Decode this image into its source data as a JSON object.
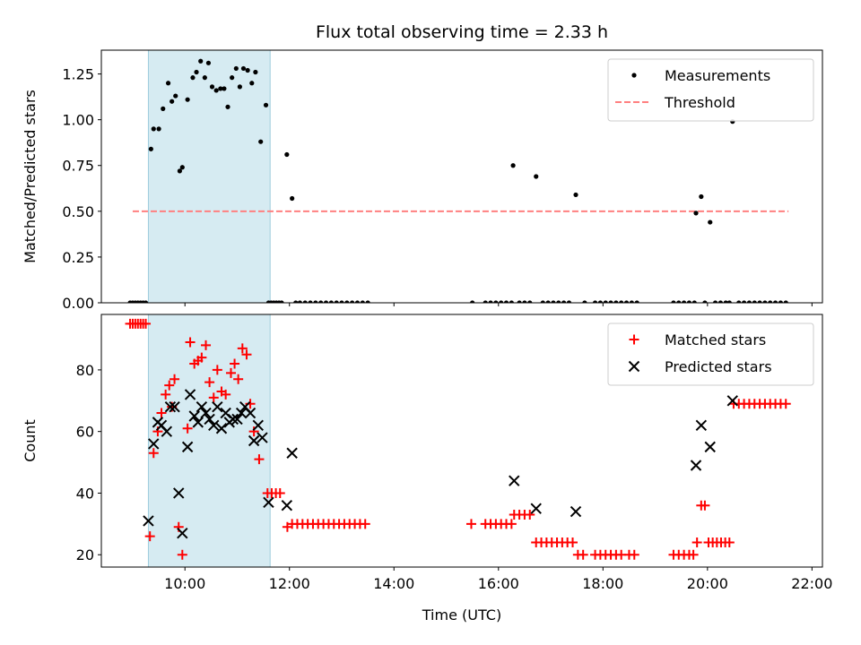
{
  "chart_data": [
    {
      "type": "scatter",
      "title": "Flux total observing time = 2.33 h",
      "xlabel": "",
      "ylabel": "Matched/Predicted stars",
      "xlim": [
        8.4,
        22.2
      ],
      "ylim": [
        0,
        1.38
      ],
      "yticks": [
        "0.00",
        "0.25",
        "0.50",
        "0.75",
        "1.00",
        "1.25"
      ],
      "ytick_values": [
        0,
        0.25,
        0.5,
        0.75,
        1.0,
        1.25
      ],
      "shaded_span": [
        9.3,
        11.63
      ],
      "legend": {
        "position": "upper right",
        "entries": [
          "Measurements",
          "Threshold"
        ]
      },
      "threshold": {
        "name": "Threshold",
        "value": 0.5,
        "x_range": [
          9.0,
          21.55
        ],
        "color": "#ff8080"
      },
      "series": [
        {
          "name": "Measurements",
          "marker": "dot",
          "color": "#000000",
          "points": [
            [
              8.95,
              0
            ],
            [
              9.0,
              0
            ],
            [
              9.05,
              0
            ],
            [
              9.1,
              0
            ],
            [
              9.15,
              0
            ],
            [
              9.2,
              0
            ],
            [
              9.25,
              0
            ],
            [
              9.35,
              0.84
            ],
            [
              9.4,
              0.95
            ],
            [
              9.5,
              0.95
            ],
            [
              9.58,
              1.06
            ],
            [
              9.68,
              1.2
            ],
            [
              9.75,
              1.1
            ],
            [
              9.82,
              1.13
            ],
            [
              9.9,
              0.72
            ],
            [
              9.95,
              0.74
            ],
            [
              10.05,
              1.11
            ],
            [
              10.15,
              1.23
            ],
            [
              10.22,
              1.26
            ],
            [
              10.3,
              1.32
            ],
            [
              10.38,
              1.23
            ],
            [
              10.45,
              1.31
            ],
            [
              10.52,
              1.18
            ],
            [
              10.6,
              1.16
            ],
            [
              10.68,
              1.17
            ],
            [
              10.75,
              1.17
            ],
            [
              10.82,
              1.07
            ],
            [
              10.9,
              1.23
            ],
            [
              10.98,
              1.28
            ],
            [
              11.05,
              1.18
            ],
            [
              11.12,
              1.28
            ],
            [
              11.2,
              1.27
            ],
            [
              11.28,
              1.2
            ],
            [
              11.35,
              1.26
            ],
            [
              11.45,
              0.88
            ],
            [
              11.55,
              1.08
            ],
            [
              11.6,
              0
            ],
            [
              11.65,
              0
            ],
            [
              11.7,
              0
            ],
            [
              11.75,
              0
            ],
            [
              11.8,
              0
            ],
            [
              11.85,
              0
            ],
            [
              11.95,
              0.81
            ],
            [
              12.05,
              0.57
            ],
            [
              12.12,
              0
            ],
            [
              12.2,
              0
            ],
            [
              12.3,
              0
            ],
            [
              12.4,
              0
            ],
            [
              12.5,
              0
            ],
            [
              12.6,
              0
            ],
            [
              12.7,
              0
            ],
            [
              12.8,
              0
            ],
            [
              12.9,
              0
            ],
            [
              13.0,
              0
            ],
            [
              13.1,
              0
            ],
            [
              13.2,
              0
            ],
            [
              13.3,
              0
            ],
            [
              13.4,
              0
            ],
            [
              13.5,
              0
            ],
            [
              15.5,
              0
            ],
            [
              15.75,
              0
            ],
            [
              15.85,
              0
            ],
            [
              15.95,
              0
            ],
            [
              16.05,
              0
            ],
            [
              16.15,
              0
            ],
            [
              16.25,
              0
            ],
            [
              16.28,
              0.75
            ],
            [
              16.4,
              0
            ],
            [
              16.5,
              0
            ],
            [
              16.6,
              0
            ],
            [
              16.72,
              0.69
            ],
            [
              16.85,
              0
            ],
            [
              16.95,
              0
            ],
            [
              17.05,
              0
            ],
            [
              17.15,
              0
            ],
            [
              17.25,
              0
            ],
            [
              17.35,
              0
            ],
            [
              17.48,
              0.59
            ],
            [
              17.65,
              0
            ],
            [
              17.85,
              0
            ],
            [
              17.95,
              0
            ],
            [
              18.05,
              0
            ],
            [
              18.15,
              0
            ],
            [
              18.25,
              0
            ],
            [
              18.35,
              0
            ],
            [
              18.45,
              0
            ],
            [
              18.55,
              0
            ],
            [
              18.65,
              0
            ],
            [
              19.35,
              0
            ],
            [
              19.45,
              0
            ],
            [
              19.55,
              0
            ],
            [
              19.65,
              0
            ],
            [
              19.75,
              0
            ],
            [
              19.78,
              0.49
            ],
            [
              19.88,
              0.58
            ],
            [
              20.05,
              0.44
            ],
            [
              19.95,
              0
            ],
            [
              20.15,
              0
            ],
            [
              20.25,
              0
            ],
            [
              20.35,
              0
            ],
            [
              20.42,
              0
            ],
            [
              20.48,
              0.99
            ],
            [
              20.6,
              0
            ],
            [
              20.7,
              0
            ],
            [
              20.8,
              0
            ],
            [
              20.9,
              0
            ],
            [
              21.0,
              0
            ],
            [
              21.1,
              0
            ],
            [
              21.2,
              0
            ],
            [
              21.3,
              0
            ],
            [
              21.4,
              0
            ],
            [
              21.5,
              0
            ]
          ]
        }
      ]
    },
    {
      "type": "scatter",
      "title": "",
      "xlabel": "Time (UTC)",
      "ylabel": "Count",
      "xlim": [
        8.4,
        22.2
      ],
      "ylim": [
        16,
        98
      ],
      "xticks": [
        "10:00",
        "12:00",
        "14:00",
        "16:00",
        "18:00",
        "20:00",
        "22:00"
      ],
      "xtick_values": [
        10,
        12,
        14,
        16,
        18,
        20,
        22
      ],
      "yticks": [
        "20",
        "40",
        "60",
        "80"
      ],
      "ytick_values": [
        20,
        40,
        60,
        80
      ],
      "shaded_span": [
        9.3,
        11.63
      ],
      "legend": {
        "position": "upper right",
        "entries": [
          "Matched stars",
          "Predicted stars"
        ]
      },
      "series": [
        {
          "name": "Matched stars",
          "marker": "plus",
          "color": "#ff0000",
          "points": [
            [
              8.95,
              95
            ],
            [
              9.0,
              95
            ],
            [
              9.05,
              95
            ],
            [
              9.1,
              95
            ],
            [
              9.15,
              95
            ],
            [
              9.2,
              95
            ],
            [
              9.25,
              95
            ],
            [
              9.33,
              26
            ],
            [
              9.4,
              53
            ],
            [
              9.48,
              60
            ],
            [
              9.55,
              66
            ],
            [
              9.63,
              72
            ],
            [
              9.7,
              75
            ],
            [
              9.75,
              68
            ],
            [
              9.8,
              77
            ],
            [
              9.88,
              29
            ],
            [
              9.95,
              20
            ],
            [
              10.05,
              61
            ],
            [
              10.1,
              89
            ],
            [
              10.18,
              82
            ],
            [
              10.25,
              83
            ],
            [
              10.32,
              84
            ],
            [
              10.4,
              88
            ],
            [
              10.47,
              76
            ],
            [
              10.55,
              71
            ],
            [
              10.62,
              80
            ],
            [
              10.7,
              73
            ],
            [
              10.78,
              72
            ],
            [
              10.88,
              79
            ],
            [
              10.95,
              82
            ],
            [
              11.02,
              77
            ],
            [
              11.1,
              87
            ],
            [
              11.18,
              85
            ],
            [
              11.25,
              69
            ],
            [
              11.32,
              60
            ],
            [
              11.42,
              51
            ],
            [
              11.58,
              40
            ],
            [
              11.66,
              40
            ],
            [
              11.74,
              40
            ],
            [
              11.82,
              40
            ],
            [
              11.96,
              29
            ],
            [
              12.05,
              30
            ],
            [
              12.15,
              30
            ],
            [
              12.25,
              30
            ],
            [
              12.35,
              30
            ],
            [
              12.45,
              30
            ],
            [
              12.55,
              30
            ],
            [
              12.65,
              30
            ],
            [
              12.75,
              30
            ],
            [
              12.85,
              30
            ],
            [
              12.95,
              30
            ],
            [
              13.05,
              30
            ],
            [
              13.15,
              30
            ],
            [
              13.25,
              30
            ],
            [
              13.35,
              30
            ],
            [
              13.45,
              30
            ],
            [
              15.48,
              30
            ],
            [
              15.75,
              30
            ],
            [
              15.85,
              30
            ],
            [
              15.95,
              30
            ],
            [
              16.05,
              30
            ],
            [
              16.15,
              30
            ],
            [
              16.25,
              30
            ],
            [
              16.3,
              33
            ],
            [
              16.4,
              33
            ],
            [
              16.5,
              33
            ],
            [
              16.6,
              33
            ],
            [
              16.72,
              24
            ],
            [
              16.82,
              24
            ],
            [
              16.92,
              24
            ],
            [
              17.02,
              24
            ],
            [
              17.12,
              24
            ],
            [
              17.22,
              24
            ],
            [
              17.32,
              24
            ],
            [
              17.42,
              24
            ],
            [
              17.52,
              20
            ],
            [
              17.62,
              20
            ],
            [
              17.85,
              20
            ],
            [
              17.95,
              20
            ],
            [
              18.05,
              20
            ],
            [
              18.15,
              20
            ],
            [
              18.25,
              20
            ],
            [
              18.35,
              20
            ],
            [
              18.5,
              20
            ],
            [
              18.6,
              20
            ],
            [
              19.35,
              20
            ],
            [
              19.45,
              20
            ],
            [
              19.55,
              20
            ],
            [
              19.65,
              20
            ],
            [
              19.73,
              20
            ],
            [
              19.8,
              24
            ],
            [
              19.88,
              36
            ],
            [
              19.95,
              36
            ],
            [
              20.02,
              24
            ],
            [
              20.1,
              24
            ],
            [
              20.18,
              24
            ],
            [
              20.26,
              24
            ],
            [
              20.34,
              24
            ],
            [
              20.42,
              24
            ],
            [
              20.5,
              69
            ],
            [
              20.6,
              69
            ],
            [
              20.7,
              69
            ],
            [
              20.8,
              69
            ],
            [
              20.9,
              69
            ],
            [
              21.0,
              69
            ],
            [
              21.1,
              69
            ],
            [
              21.2,
              69
            ],
            [
              21.3,
              69
            ],
            [
              21.4,
              69
            ],
            [
              21.5,
              69
            ]
          ]
        },
        {
          "name": "Predicted stars",
          "marker": "x",
          "color": "#000000",
          "points": [
            [
              9.3,
              31
            ],
            [
              9.4,
              56
            ],
            [
              9.48,
              63
            ],
            [
              9.55,
              62
            ],
            [
              9.65,
              60
            ],
            [
              9.72,
              68
            ],
            [
              9.8,
              68
            ],
            [
              9.88,
              40
            ],
            [
              9.95,
              27
            ],
            [
              10.05,
              55
            ],
            [
              10.1,
              72
            ],
            [
              10.18,
              65
            ],
            [
              10.25,
              63
            ],
            [
              10.32,
              68
            ],
            [
              10.4,
              66
            ],
            [
              10.47,
              64
            ],
            [
              10.55,
              62
            ],
            [
              10.62,
              68
            ],
            [
              10.7,
              61
            ],
            [
              10.78,
              66
            ],
            [
              10.85,
              63
            ],
            [
              10.92,
              64
            ],
            [
              11.0,
              64
            ],
            [
              11.08,
              66
            ],
            [
              11.15,
              68
            ],
            [
              11.25,
              66
            ],
            [
              11.32,
              57
            ],
            [
              11.4,
              62
            ],
            [
              11.48,
              58
            ],
            [
              11.6,
              37
            ],
            [
              11.95,
              36
            ],
            [
              12.05,
              53
            ],
            [
              16.3,
              44
            ],
            [
              16.72,
              35
            ],
            [
              17.48,
              34
            ],
            [
              19.78,
              49
            ],
            [
              19.88,
              62
            ],
            [
              20.05,
              55
            ],
            [
              20.48,
              70
            ]
          ]
        }
      ]
    }
  ]
}
